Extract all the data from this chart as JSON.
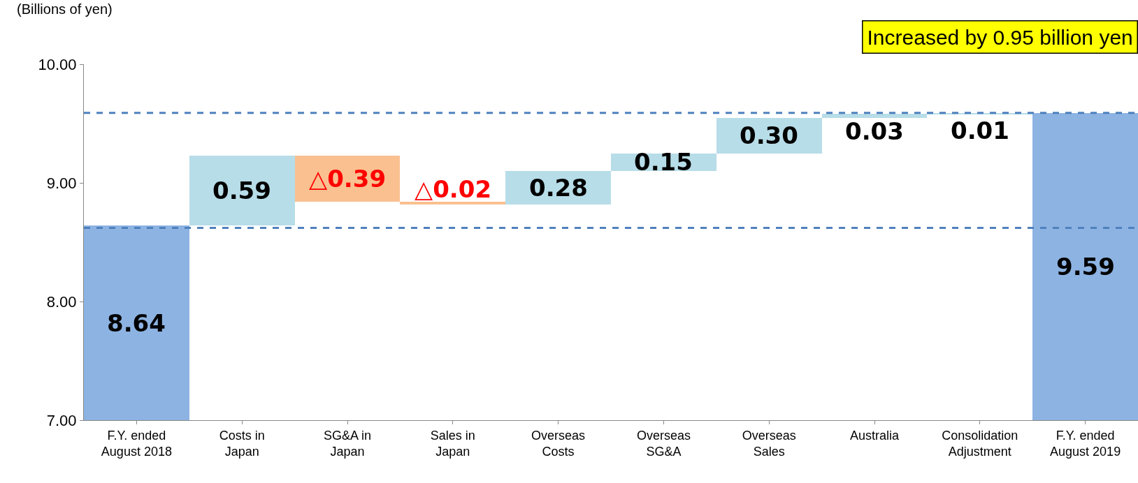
{
  "chart_data": {
    "type": "bar",
    "ylabel": "(Billions of yen)",
    "categories": [
      "F.Y. ended\nAugust 2018",
      "Costs in\nJapan",
      "SG&A in\nJapan",
      "Sales in\nJapan",
      "Overseas\nCosts",
      "Overseas\nSG&A",
      "Overseas\nSales",
      "Australia",
      "Consolidation\nAdjustment",
      "F.Y. ended\nAugust 2019"
    ],
    "values": [
      8.64,
      0.59,
      -0.39,
      -0.02,
      0.28,
      0.15,
      0.3,
      0.03,
      0.01,
      9.59
    ],
    "base": [
      null,
      8.64,
      9.23,
      8.84,
      8.82,
      9.1,
      9.25,
      9.55,
      9.58,
      null
    ],
    "colors": [
      "#8db3e2",
      "#b7dde8",
      "#fac090",
      "#fac090",
      "#b7dde8",
      "#b7dde8",
      "#b7dde8",
      "#b7dde8",
      "#b7dde8",
      "#8db3e2"
    ],
    "value_labels": [
      "8.64",
      "0.59",
      "△0.39",
      "△0.02",
      "0.28",
      "0.15",
      "0.30",
      "0.03",
      "0.01",
      "9.59"
    ],
    "ylim": [
      7,
      10
    ],
    "yticks": [
      {
        "value": 7,
        "label": "7.00"
      },
      {
        "value": 8,
        "label": "8.00"
      },
      {
        "value": 9,
        "label": "9.00"
      },
      {
        "value": 10,
        "label": "10.00"
      }
    ],
    "ref_lines": [
      {
        "axis": "y",
        "value": 9.59,
        "color": "#4f81bd",
        "line_style": "dashed"
      },
      {
        "axis": "y",
        "value": 8.62,
        "color": "#4f81bd",
        "line_style": "dashed"
      }
    ],
    "annotations": [
      "Increased by 0.95 billion yen"
    ]
  }
}
